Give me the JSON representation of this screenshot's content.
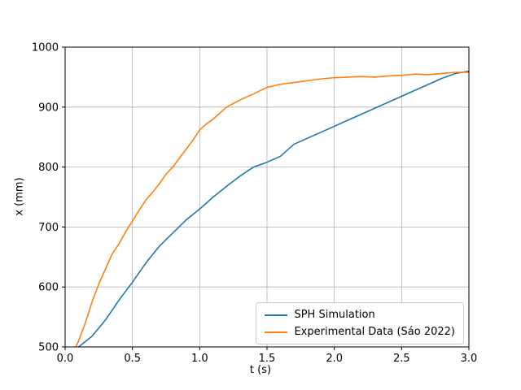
{
  "chart_data": {
    "type": "line",
    "title": "",
    "xlabel": "t (s)",
    "ylabel": "x (mm)",
    "xlim": [
      0.0,
      3.0
    ],
    "ylim": [
      500,
      1000
    ],
    "xticks": [
      0.0,
      0.5,
      1.0,
      1.5,
      2.0,
      2.5,
      3.0
    ],
    "xtick_labels": [
      "0.0",
      "0.5",
      "1.0",
      "1.5",
      "2.0",
      "2.5",
      "3.0"
    ],
    "yticks": [
      500,
      600,
      700,
      800,
      900,
      1000
    ],
    "ytick_labels": [
      "500",
      "600",
      "700",
      "800",
      "900",
      "1000"
    ],
    "grid": true,
    "grid_color": "#b0b0b0",
    "legend_position": "lower right",
    "series": [
      {
        "name": "SPH Simulation",
        "color": "#1f77b4",
        "x": [
          0.1,
          0.2,
          0.3,
          0.4,
          0.5,
          0.6,
          0.7,
          0.8,
          0.9,
          1.0,
          1.1,
          1.2,
          1.3,
          1.4,
          1.5,
          1.6,
          1.7,
          1.8,
          1.9,
          2.0,
          2.1,
          2.2,
          2.3,
          2.4,
          2.5,
          2.6,
          2.7,
          2.8,
          2.9,
          3.0
        ],
        "y": [
          500,
          518,
          545,
          578,
          608,
          640,
          668,
          690,
          712,
          730,
          750,
          768,
          785,
          800,
          808,
          818,
          838,
          848,
          858,
          868,
          878,
          888,
          898,
          908,
          918,
          928,
          938,
          948,
          956,
          960
        ]
      },
      {
        "name": "Experimental Data (Sáo 2022)",
        "color": "#ff7f0e",
        "x": [
          0.08,
          0.1,
          0.15,
          0.2,
          0.25,
          0.3,
          0.35,
          0.4,
          0.45,
          0.5,
          0.55,
          0.6,
          0.65,
          0.7,
          0.75,
          0.8,
          0.85,
          0.9,
          0.95,
          1.0,
          1.05,
          1.1,
          1.15,
          1.2,
          1.3,
          1.4,
          1.5,
          1.6,
          1.7,
          1.8,
          1.9,
          2.0,
          2.1,
          2.2,
          2.3,
          2.4,
          2.5,
          2.6,
          2.7,
          2.8,
          2.9,
          3.0
        ],
        "y": [
          500,
          510,
          540,
          575,
          605,
          630,
          655,
          672,
          692,
          710,
          728,
          745,
          758,
          772,
          788,
          800,
          815,
          830,
          845,
          862,
          872,
          880,
          890,
          900,
          912,
          922,
          933,
          938,
          941,
          944,
          947,
          949,
          950,
          951,
          950,
          952,
          953,
          955,
          954,
          956,
          958,
          958
        ]
      }
    ]
  }
}
